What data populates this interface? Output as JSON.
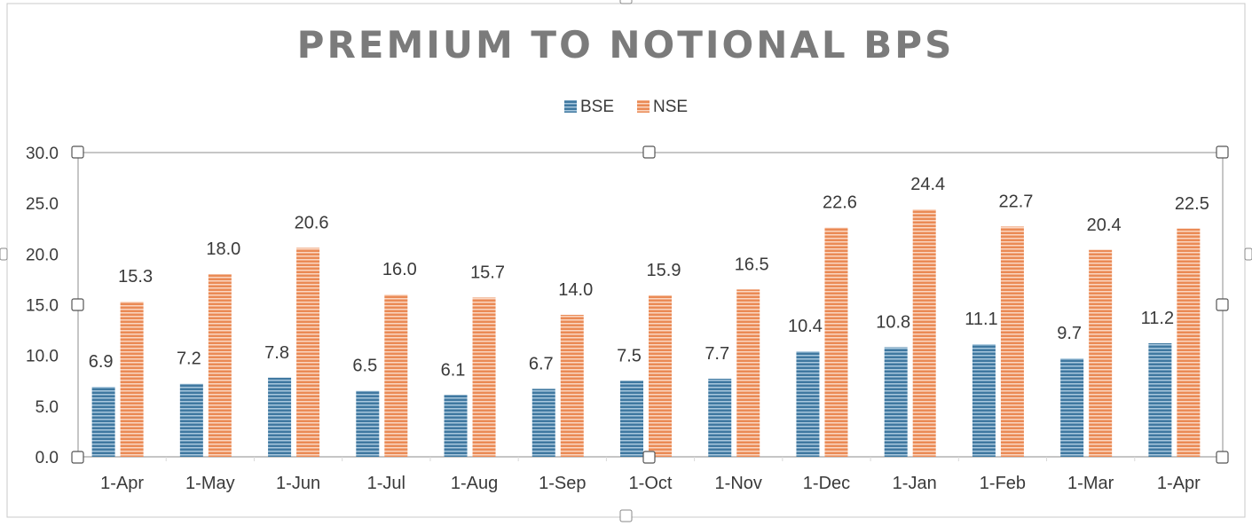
{
  "colors": {
    "bse": "#3f78a0",
    "bse_stripe": "#a9c8de",
    "nse": "#ea8a55",
    "nse_stripe": "#fbd7c2",
    "title": "#7b7b7b",
    "text": "#3a3a3a",
    "axis": "#8c8c8c",
    "gridline": "#d9d9d9"
  },
  "chart_data": {
    "type": "bar",
    "title": "PREMIUM TO NOTIONAL BPS",
    "xlabel": "",
    "ylabel": "",
    "categories": [
      "1-Apr",
      "1-May",
      "1-Jun",
      "1-Jul",
      "1-Aug",
      "1-Sep",
      "1-Oct",
      "1-Nov",
      "1-Dec",
      "1-Jan",
      "1-Feb",
      "1-Mar",
      "1-Apr"
    ],
    "series": [
      {
        "name": "BSE",
        "values": [
          6.9,
          7.2,
          7.8,
          6.5,
          6.1,
          6.7,
          7.5,
          7.7,
          10.4,
          10.8,
          11.1,
          9.7,
          11.2
        ]
      },
      {
        "name": "NSE",
        "values": [
          15.3,
          18.0,
          20.6,
          16.0,
          15.7,
          14.0,
          15.9,
          16.5,
          22.6,
          24.4,
          22.7,
          20.4,
          22.5
        ]
      }
    ],
    "ylim": [
      0,
      30
    ],
    "yticks": [
      "0.0",
      "5.0",
      "10.0",
      "15.0",
      "20.0",
      "25.0",
      "30.0"
    ],
    "grid": false,
    "legend_position": "top-center",
    "data_labels": true,
    "bar_pattern": "horizontal-stripes"
  }
}
